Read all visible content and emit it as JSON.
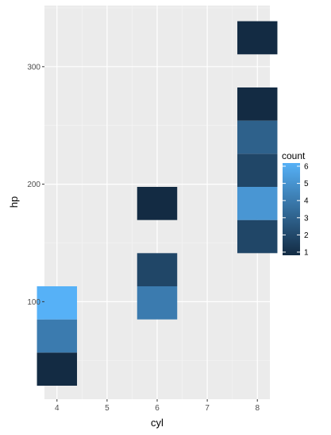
{
  "chart_data": {
    "type": "heatmap",
    "title": "",
    "xlabel": "cyl",
    "ylabel": "hp",
    "x_ticks": [
      4,
      5,
      6,
      7,
      8
    ],
    "y_ticks": [
      100,
      200,
      300
    ],
    "xlim": [
      3.75,
      8.25
    ],
    "ylim": [
      17,
      352
    ],
    "bin_width_x": 0.8,
    "bin_height_y": 28.2,
    "grid": true,
    "legend": {
      "title": "count",
      "position": "right",
      "ticks": [
        1,
        2,
        3,
        4,
        5,
        6
      ],
      "low_color": "#132B43",
      "high_color": "#56B1F7"
    },
    "bins": [
      {
        "x": 4,
        "y_low": 28.5,
        "y_high": 56.7,
        "count": 1
      },
      {
        "x": 4,
        "y_low": 56.7,
        "y_high": 84.9,
        "count": 4
      },
      {
        "x": 4,
        "y_low": 84.9,
        "y_high": 113.1,
        "count": 6
      },
      {
        "x": 6,
        "y_low": 84.9,
        "y_high": 113.1,
        "count": 4
      },
      {
        "x": 6,
        "y_low": 113.1,
        "y_high": 141.3,
        "count": 2
      },
      {
        "x": 6,
        "y_low": 169.5,
        "y_high": 197.7,
        "count": 1
      },
      {
        "x": 8,
        "y_low": 141.3,
        "y_high": 169.5,
        "count": 2
      },
      {
        "x": 8,
        "y_low": 169.5,
        "y_high": 197.7,
        "count": 5
      },
      {
        "x": 8,
        "y_low": 197.7,
        "y_high": 225.9,
        "count": 2
      },
      {
        "x": 8,
        "y_low": 225.9,
        "y_high": 254.1,
        "count": 3
      },
      {
        "x": 8,
        "y_low": 254.1,
        "y_high": 282.3,
        "count": 1
      },
      {
        "x": 8,
        "y_low": 310.5,
        "y_high": 338.7,
        "count": 1
      }
    ]
  }
}
